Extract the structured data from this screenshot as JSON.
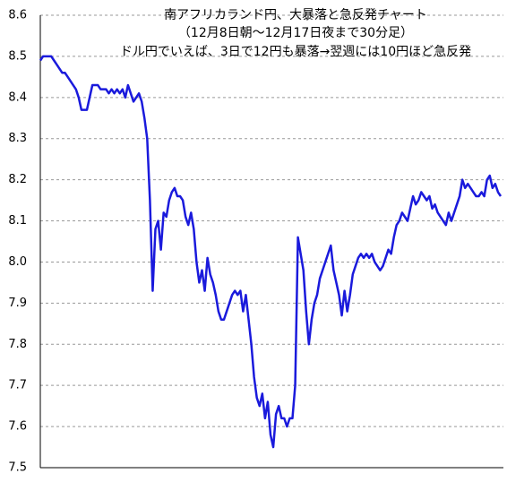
{
  "chart_data": {
    "type": "line",
    "title": "南アフリカランド円、大暴落と急反発チャート",
    "subtitle": "（12月8日朝～12月17日夜まで30分足）",
    "annotation": "ドル円でいえば、3日で12円も暴落→翌週には10円ほど急反発",
    "color": "#1a1adc",
    "ylim": [
      7.5,
      8.6
    ],
    "yticks": [
      {
        "value": 7.5,
        "label": "7.5"
      },
      7.6,
      7.7,
      7.8,
      7.9,
      {
        "value": 8,
        "label": "8.0"
      },
      8.1,
      8.2,
      8.3,
      8.4,
      8.5,
      8.6
    ],
    "grid": true,
    "values": [
      8.49,
      8.5,
      8.5,
      8.5,
      8.5,
      8.49,
      8.48,
      8.47,
      8.46,
      8.46,
      8.45,
      8.44,
      8.43,
      8.42,
      8.4,
      8.37,
      8.37,
      8.37,
      8.4,
      8.43,
      8.43,
      8.43,
      8.42,
      8.42,
      8.42,
      8.41,
      8.42,
      8.41,
      8.42,
      8.41,
      8.42,
      8.4,
      8.43,
      8.41,
      8.39,
      8.4,
      8.41,
      8.39,
      8.35,
      8.3,
      8.15,
      7.93,
      8.08,
      8.1,
      8.03,
      8.12,
      8.11,
      8.15,
      8.17,
      8.18,
      8.16,
      8.16,
      8.15,
      8.11,
      8.09,
      8.12,
      8.08,
      8.0,
      7.95,
      7.98,
      7.93,
      8.01,
      7.97,
      7.95,
      7.92,
      7.88,
      7.86,
      7.86,
      7.88,
      7.9,
      7.92,
      7.93,
      7.92,
      7.93,
      7.88,
      7.92,
      7.86,
      7.8,
      7.72,
      7.67,
      7.65,
      7.68,
      7.62,
      7.66,
      7.58,
      7.55,
      7.63,
      7.65,
      7.62,
      7.62,
      7.6,
      7.62,
      7.62,
      7.7,
      8.06,
      8.02,
      7.98,
      7.88,
      7.8,
      7.86,
      7.9,
      7.92,
      7.96,
      7.98,
      8.0,
      8.02,
      8.04,
      7.98,
      7.95,
      7.92,
      7.87,
      7.93,
      7.88,
      7.92,
      7.97,
      7.99,
      8.01,
      8.02,
      8.01,
      8.02,
      8.01,
      8.02,
      8.0,
      7.99,
      7.98,
      7.99,
      8.01,
      8.03,
      8.02,
      8.06,
      8.09,
      8.1,
      8.12,
      8.11,
      8.1,
      8.13,
      8.16,
      8.14,
      8.15,
      8.17,
      8.16,
      8.15,
      8.16,
      8.13,
      8.14,
      8.12,
      8.11,
      8.1,
      8.09,
      8.12,
      8.1,
      8.12,
      8.14,
      8.16,
      8.2,
      8.18,
      8.19,
      8.18,
      8.17,
      8.16,
      8.16,
      8.17,
      8.16,
      8.2,
      8.21,
      8.18,
      8.19,
      8.17,
      8.16
    ]
  }
}
